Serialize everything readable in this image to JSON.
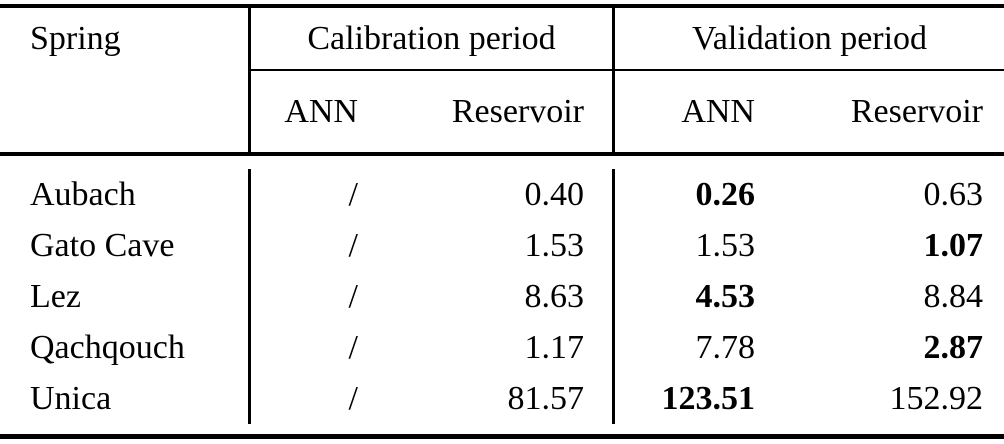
{
  "table": {
    "columns": {
      "spring": "Spring",
      "calibration_period": "Calibration period",
      "validation_period": "Validation period"
    },
    "subcolumns": {
      "calibration_ann": "ANN",
      "calibration_reservoir": "Reservoir",
      "validation_ann": "ANN",
      "validation_reservoir": "Reservoir"
    },
    "rows": [
      {
        "spring": "Aubach",
        "calibration_ann": "/",
        "calibration_reservoir": "0.40",
        "validation_ann": "0.26",
        "validation_ann_bold": true,
        "validation_reservoir": "0.63",
        "validation_reservoir_bold": false
      },
      {
        "spring": "Gato Cave",
        "calibration_ann": "/",
        "calibration_reservoir": "1.53",
        "validation_ann": "1.53",
        "validation_ann_bold": false,
        "validation_reservoir": "1.07",
        "validation_reservoir_bold": true
      },
      {
        "spring": "Lez",
        "calibration_ann": "/",
        "calibration_reservoir": "8.63",
        "validation_ann": "4.53",
        "validation_ann_bold": true,
        "validation_reservoir": "8.84",
        "validation_reservoir_bold": false
      },
      {
        "spring": "Qachqouch",
        "calibration_ann": "/",
        "calibration_reservoir": "1.17",
        "validation_ann": "7.78",
        "validation_ann_bold": false,
        "validation_reservoir": "2.87",
        "validation_reservoir_bold": true
      },
      {
        "spring": "Unica",
        "calibration_ann": "/",
        "calibration_reservoir": "81.57",
        "validation_ann": "123.51",
        "validation_ann_bold": true,
        "validation_reservoir": "152.92",
        "validation_reservoir_bold": false
      }
    ],
    "colors": {
      "text": "#000000",
      "background": "#ffffff",
      "rule": "#000000"
    }
  },
  "chart_data": {
    "type": "table",
    "title": "",
    "column_groups": [
      "Spring",
      "Calibration period",
      "Validation period"
    ],
    "columns": [
      "Spring",
      "Calibration ANN",
      "Calibration Reservoir",
      "Validation ANN",
      "Validation Reservoir"
    ],
    "rows": [
      [
        "Aubach",
        "/",
        0.4,
        0.26,
        0.63
      ],
      [
        "Gato Cave",
        "/",
        1.53,
        1.53,
        1.07
      ],
      [
        "Lez",
        "/",
        8.63,
        4.53,
        8.84
      ],
      [
        "Qachqouch",
        "/",
        1.17,
        7.78,
        2.87
      ],
      [
        "Unica",
        "/",
        81.57,
        123.51,
        152.92
      ]
    ],
    "bold_cells": [
      {
        "row": "Aubach",
        "column": "Validation ANN"
      },
      {
        "row": "Gato Cave",
        "column": "Validation Reservoir"
      },
      {
        "row": "Lez",
        "column": "Validation ANN"
      },
      {
        "row": "Qachqouch",
        "column": "Validation Reservoir"
      },
      {
        "row": "Unica",
        "column": "Validation ANN"
      }
    ]
  }
}
